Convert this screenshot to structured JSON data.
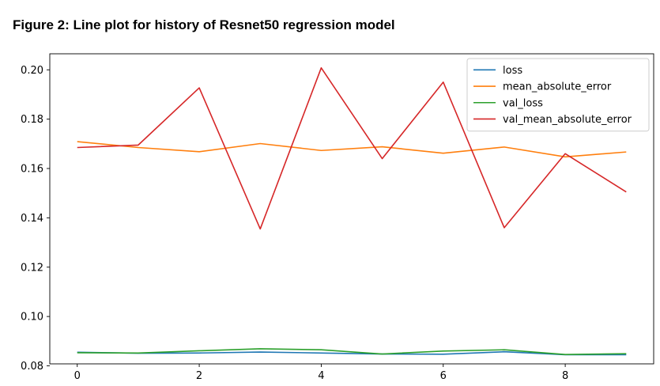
{
  "figure": {
    "title": "Figure 2: Line plot for history of Resnet50 regression model"
  },
  "chart_data": {
    "type": "line",
    "x": [
      0,
      1,
      2,
      3,
      4,
      5,
      6,
      7,
      8,
      9
    ],
    "xlim": [
      -0.45,
      9.45
    ],
    "ylim": [
      0.0808,
      0.2065
    ],
    "xticks": [
      0,
      2,
      4,
      6,
      8
    ],
    "yticks": [
      0.08,
      0.1,
      0.12,
      0.14,
      0.16,
      0.18,
      0.2
    ],
    "ytick_labels": [
      "0.08",
      "0.10",
      "0.12",
      "0.14",
      "0.16",
      "0.18",
      "0.20"
    ],
    "legend_position": "top-right",
    "series": [
      {
        "name": "loss",
        "color": "#1f77b4",
        "values": [
          0.0855,
          0.0851,
          0.0852,
          0.0856,
          0.0852,
          0.0848,
          0.0847,
          0.0857,
          0.0845,
          0.0845
        ]
      },
      {
        "name": "mean_absolute_error",
        "color": "#ff7f0e",
        "values": [
          0.1709,
          0.1685,
          0.1668,
          0.1701,
          0.1673,
          0.1688,
          0.1662,
          0.1687,
          0.1647,
          0.1667
        ]
      },
      {
        "name": "val_loss",
        "color": "#2ca02c",
        "values": [
          0.0853,
          0.0852,
          0.0861,
          0.0869,
          0.0865,
          0.0848,
          0.086,
          0.0865,
          0.0846,
          0.0849
        ]
      },
      {
        "name": "val_mean_absolute_error",
        "color": "#d62728",
        "values": [
          0.1685,
          0.1695,
          0.1927,
          0.1355,
          0.2008,
          0.164,
          0.195,
          0.136,
          0.166,
          0.1505
        ]
      }
    ]
  }
}
